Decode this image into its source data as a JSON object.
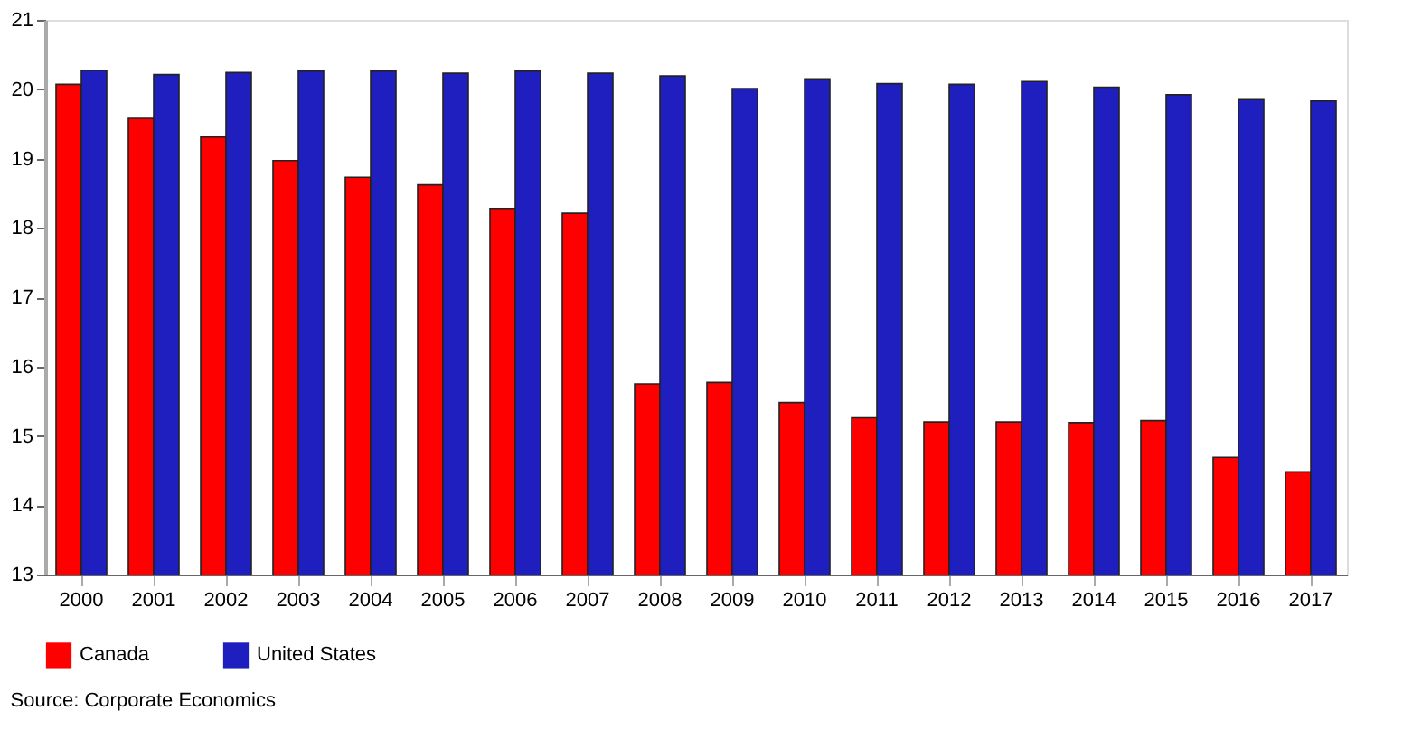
{
  "chart_data": {
    "type": "bar",
    "categories": [
      "2000",
      "2001",
      "2002",
      "2003",
      "2004",
      "2005",
      "2006",
      "2007",
      "2008",
      "2009",
      "2010",
      "2011",
      "2012",
      "2013",
      "2014",
      "2015",
      "2016",
      "2017"
    ],
    "series": [
      {
        "name": "Canada",
        "color": "#ff0000",
        "values": [
          20.07,
          19.58,
          19.31,
          18.97,
          18.73,
          18.62,
          18.28,
          18.21,
          15.75,
          15.77,
          15.48,
          15.26,
          15.2,
          15.2,
          15.19,
          15.22,
          14.69,
          14.48
        ]
      },
      {
        "name": "United States",
        "color": "#1f1fbf",
        "values": [
          20.27,
          20.21,
          20.24,
          20.26,
          20.26,
          20.23,
          20.26,
          20.23,
          20.19,
          20.01,
          20.15,
          20.08,
          20.07,
          20.11,
          20.03,
          19.92,
          19.85,
          19.83
        ]
      }
    ],
    "ylim": [
      13,
      21
    ],
    "yticks": [
      13,
      14,
      15,
      16,
      17,
      18,
      19,
      20,
      21
    ],
    "grid": false,
    "legend": "bottom",
    "annotations": [
      "Source: Corporate Economics"
    ]
  }
}
